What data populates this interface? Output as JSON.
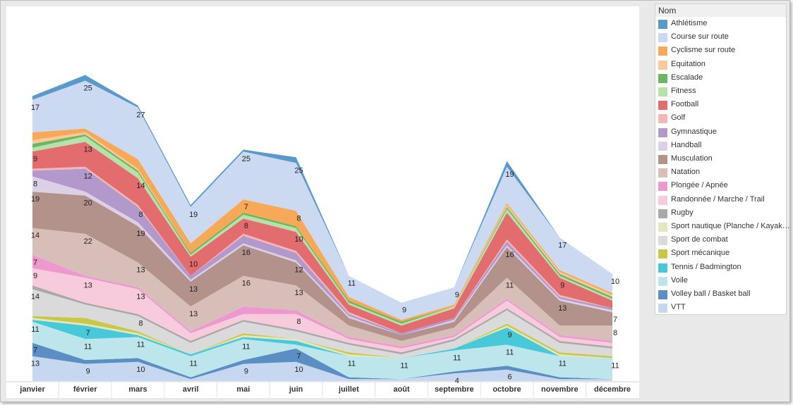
{
  "chart_data": {
    "type": "area",
    "stacked": true,
    "categories": [
      "janvier",
      "février",
      "mars",
      "avril",
      "mai",
      "juin",
      "juillet",
      "août",
      "septembre",
      "octobre",
      "novembre",
      "décembre"
    ],
    "legend": {
      "title": "Nom",
      "position": "right"
    },
    "series": [
      {
        "name": "VTT",
        "color": "#c6d8f0",
        "values": [
          13,
          9,
          10,
          1,
          9,
          10,
          1,
          1,
          4,
          6,
          1,
          1
        ]
      },
      {
        "name": "Volley ball / Basket ball",
        "color": "#5b8fc4",
        "values": [
          7,
          2,
          2,
          1,
          2,
          7,
          1,
          0,
          1,
          2,
          1,
          0
        ]
      },
      {
        "name": "Voile",
        "color": "#bde5ec",
        "values": [
          11,
          11,
          11,
          11,
          11,
          2,
          11,
          11,
          11,
          11,
          11,
          11
        ]
      },
      {
        "name": "Tennis / Badmington",
        "color": "#47c9d9",
        "values": [
          1,
          7,
          1,
          1,
          1,
          2,
          0,
          0,
          1,
          9,
          0,
          0
        ]
      },
      {
        "name": "Sport  nautique (Planche / Kayak…",
        "color": "#e3e6be",
        "values": [
          1,
          1,
          1,
          0,
          1,
          1,
          1,
          0,
          0,
          1,
          1,
          0
        ]
      },
      {
        "name": "Sport mécanique",
        "color": "#c8c748",
        "values": [
          1,
          3,
          1,
          0,
          1,
          0,
          1,
          0,
          0,
          1,
          1,
          1
        ]
      },
      {
        "name": "Sport de combat",
        "color": "#dadada",
        "values": [
          14,
          7,
          8,
          6,
          6,
          4,
          4,
          2,
          4,
          7,
          5,
          4
        ]
      },
      {
        "name": "Rugby",
        "color": "#a9a9a9",
        "values": [
          2,
          1,
          1,
          1,
          1,
          1,
          1,
          1,
          1,
          1,
          1,
          1
        ]
      },
      {
        "name": "Randonnée / Marche / Trail",
        "color": "#f7cbdc",
        "values": [
          9,
          13,
          13,
          4,
          3,
          8,
          2,
          2,
          1,
          4,
          2,
          2
        ]
      },
      {
        "name": "Plongée / Apnée",
        "color": "#ee98d0",
        "values": [
          7,
          1,
          1,
          1,
          4,
          2,
          1,
          1,
          1,
          1,
          1,
          1
        ]
      },
      {
        "name": "Natation",
        "color": "#d8beb8",
        "values": [
          14,
          22,
          13,
          13,
          16,
          13,
          6,
          3,
          4,
          11,
          5,
          8
        ]
      },
      {
        "name": "Musculation",
        "color": "#b4928c",
        "values": [
          19,
          20,
          19,
          13,
          16,
          12,
          4,
          3,
          3,
          16,
          13,
          7
        ]
      },
      {
        "name": "Handball",
        "color": "#dcd0e6",
        "values": [
          8,
          2,
          2,
          1,
          1,
          1,
          1,
          0,
          1,
          1,
          1,
          1
        ]
      },
      {
        "name": "Gymnastique",
        "color": "#b398cc",
        "values": [
          3,
          12,
          8,
          2,
          4,
          4,
          1,
          1,
          1,
          2,
          1,
          1
        ]
      },
      {
        "name": "Golf",
        "color": "#f5b6b6",
        "values": [
          1,
          1,
          1,
          0,
          1,
          1,
          1,
          0,
          0,
          1,
          1,
          0
        ]
      },
      {
        "name": "Football",
        "color": "#e26c6e",
        "values": [
          9,
          13,
          14,
          10,
          8,
          10,
          4,
          4,
          5,
          14,
          9,
          4
        ]
      },
      {
        "name": "Fitness",
        "color": "#b6e1a8",
        "values": [
          2,
          3,
          3,
          1,
          2,
          2,
          1,
          1,
          1,
          2,
          1,
          1
        ]
      },
      {
        "name": "Escalade",
        "color": "#6cb561",
        "values": [
          2,
          1,
          1,
          1,
          1,
          1,
          1,
          1,
          0,
          1,
          1,
          1
        ]
      },
      {
        "name": "Equitation",
        "color": "#fac99a",
        "values": [
          2,
          1,
          1,
          0,
          0,
          0,
          0,
          0,
          0,
          1,
          1,
          1
        ]
      },
      {
        "name": "Cyclisme sur route",
        "color": "#f8a957",
        "values": [
          4,
          2,
          5,
          5,
          7,
          8,
          2,
          1,
          1,
          1,
          1,
          1
        ]
      },
      {
        "name": "Course sur route",
        "color": "#cbdaf1",
        "values": [
          17,
          25,
          27,
          19,
          25,
          25,
          11,
          9,
          9,
          19,
          17,
          10
        ]
      },
      {
        "name": "Athlétisme",
        "color": "#5a9acb",
        "values": [
          2,
          3,
          1,
          1,
          1,
          3,
          0,
          0,
          0,
          3,
          0,
          0
        ]
      }
    ],
    "data_labels": [
      {
        "series": "Course sur route",
        "labels": [
          17,
          25,
          27,
          19,
          25,
          25,
          11,
          9,
          9,
          19,
          17,
          10
        ]
      },
      {
        "series": "Cyclisme sur route",
        "labels": [
          null,
          null,
          null,
          null,
          7,
          8,
          null,
          null,
          null,
          null,
          null,
          null
        ]
      },
      {
        "series": "Football",
        "labels": [
          9,
          13,
          14,
          10,
          8,
          10,
          null,
          null,
          null,
          null,
          9,
          null
        ]
      },
      {
        "series": "Gymnastique",
        "labels": [
          null,
          12,
          8,
          null,
          null,
          null,
          null,
          null,
          null,
          null,
          null,
          null
        ]
      },
      {
        "series": "Handball",
        "labels": [
          8,
          null,
          null,
          null,
          null,
          null,
          null,
          null,
          null,
          null,
          null,
          null
        ]
      },
      {
        "series": "Musculation",
        "labels": [
          19,
          20,
          19,
          13,
          16,
          12,
          null,
          null,
          null,
          16,
          13,
          7
        ]
      },
      {
        "series": "Natation",
        "labels": [
          14,
          22,
          13,
          13,
          16,
          13,
          null,
          null,
          null,
          11,
          null,
          8
        ]
      },
      {
        "series": "Plongée / Apnée",
        "labels": [
          7,
          null,
          null,
          null,
          null,
          null,
          null,
          null,
          null,
          null,
          null,
          null
        ]
      },
      {
        "series": "Randonnée / Marche / Trail",
        "labels": [
          9,
          13,
          13,
          null,
          null,
          8,
          null,
          null,
          null,
          null,
          null,
          null
        ]
      },
      {
        "series": "Sport de combat",
        "labels": [
          14,
          null,
          8,
          null,
          null,
          null,
          null,
          null,
          null,
          null,
          null,
          null
        ]
      },
      {
        "series": "Tennis / Badmington",
        "labels": [
          null,
          7,
          null,
          null,
          null,
          null,
          null,
          null,
          null,
          9,
          null,
          null
        ]
      },
      {
        "series": "Voile",
        "labels": [
          11,
          11,
          11,
          11,
          11,
          null,
          11,
          11,
          11,
          11,
          11,
          11
        ]
      },
      {
        "series": "Volley ball / Basket ball",
        "labels": [
          7,
          null,
          null,
          null,
          null,
          7,
          null,
          null,
          null,
          null,
          null,
          null
        ]
      },
      {
        "series": "VTT",
        "labels": [
          13,
          9,
          10,
          null,
          9,
          10,
          null,
          null,
          4,
          6,
          null,
          null
        ]
      }
    ],
    "ylim": [
      0,
      190
    ],
    "grid": false,
    "xlabel": "",
    "ylabel": ""
  }
}
